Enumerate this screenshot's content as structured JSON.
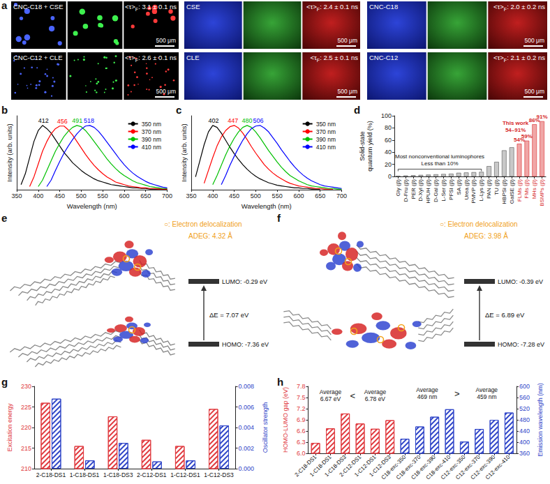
{
  "panel_a": {
    "letter": "a",
    "images": [
      {
        "name": "CNC-C18 + CSE",
        "tau": "<τ>",
        "sub": "F",
        "lifetime": ": 3.1 ± 0.1 ns",
        "scale": "500 μm"
      },
      {
        "name": "CNC-C12 + CLE",
        "tau": "<τ>",
        "sub": "F",
        "lifetime": ": 2.6 ± 0.1 ns",
        "scale": "500 μm"
      },
      {
        "name": "CSE",
        "tau": "<τ>",
        "sub": "F",
        "lifetime": ": 2.4 ± 0.1 ns",
        "scale": "500 μm"
      },
      {
        "name": "CLE",
        "tau": "<τ",
        "sub": "F",
        "lifetime": ": 2.5 ± 0.1 ns",
        "scale": "500 μm"
      },
      {
        "name": "CNC-C18",
        "tau": "<τ>",
        "sub": "F",
        "lifetime": ": 2.0 ± 0.2 ns",
        "scale": "500 μm"
      },
      {
        "name": "CNC-C12",
        "tau": "<τ>",
        "sub": "F",
        "lifetime": ": 2.1 ± 0.2 ns",
        "scale": "500 μm"
      }
    ]
  },
  "chart_data": [
    {
      "letter": "b",
      "type": "line",
      "x": [
        360,
        370,
        380,
        390,
        400,
        410,
        420,
        430,
        440,
        450,
        460,
        470,
        480,
        490,
        500,
        510,
        520,
        530,
        540,
        550,
        560,
        570,
        580,
        590,
        600,
        610,
        620,
        630,
        640,
        650,
        660,
        670,
        680,
        690,
        700
      ],
      "series": [
        {
          "name": "350 nm",
          "color": "#000000",
          "peak": 412,
          "values": [
            0.08,
            0.25,
            0.5,
            0.75,
            0.92,
            1.0,
            0.95,
            0.88,
            0.78,
            0.68,
            0.58,
            0.5,
            0.42,
            0.36,
            0.3,
            0.25,
            0.21,
            0.17,
            0.14,
            0.12,
            0.1,
            0.08,
            0.07,
            0.06,
            0.05,
            0.04,
            0.03,
            0.03,
            0.02,
            0.02,
            0.01,
            0.01,
            0.01,
            0.01,
            0.01
          ]
        },
        {
          "name": "370 nm",
          "color": "#ff0000",
          "peak": 456,
          "values": [
            null,
            null,
            0.05,
            0.2,
            0.4,
            0.6,
            0.75,
            0.87,
            0.95,
            0.99,
            0.99,
            0.93,
            0.85,
            0.75,
            0.65,
            0.55,
            0.46,
            0.38,
            0.31,
            0.25,
            0.2,
            0.16,
            0.12,
            0.1,
            0.08,
            0.06,
            0.05,
            0.04,
            0.03,
            0.03,
            0.02,
            0.02,
            0.01,
            0.01,
            0.01
          ]
        },
        {
          "name": "390 nm",
          "color": "#00c000",
          "peak": 491,
          "values": [
            null,
            null,
            null,
            null,
            0.05,
            0.15,
            0.3,
            0.45,
            0.6,
            0.72,
            0.83,
            0.91,
            0.97,
            1.0,
            0.98,
            0.92,
            0.84,
            0.75,
            0.66,
            0.57,
            0.48,
            0.4,
            0.33,
            0.27,
            0.22,
            0.18,
            0.14,
            0.11,
            0.09,
            0.07,
            0.05,
            0.04,
            0.03,
            0.02,
            0.02
          ]
        },
        {
          "name": "410 nm",
          "color": "#0000ff",
          "peak": 518,
          "values": [
            null,
            null,
            null,
            null,
            null,
            null,
            0.05,
            0.15,
            0.3,
            0.44,
            0.57,
            0.68,
            0.78,
            0.87,
            0.94,
            0.99,
            1.0,
            0.97,
            0.91,
            0.83,
            0.74,
            0.65,
            0.56,
            0.47,
            0.39,
            0.32,
            0.26,
            0.21,
            0.17,
            0.13,
            0.1,
            0.08,
            0.06,
            0.04,
            0.03
          ]
        }
      ],
      "xlim": [
        350,
        700
      ],
      "xticks": [
        350,
        400,
        450,
        500,
        550,
        600,
        650,
        700
      ],
      "ylim": [
        0,
        1.15
      ],
      "tick_labels": "x",
      "x_label": "Wavelength (nm)",
      "y_label": "Intensity (arb. units)",
      "legend": "top-right",
      "grid": false
    },
    {
      "letter": "c",
      "type": "line",
      "x": [
        360,
        370,
        380,
        390,
        400,
        410,
        420,
        430,
        440,
        450,
        460,
        470,
        480,
        490,
        500,
        510,
        520,
        530,
        540,
        550,
        560,
        570,
        580,
        590,
        600,
        610,
        620,
        630,
        640,
        650,
        660,
        670,
        680,
        690,
        700
      ],
      "series": [
        {
          "name": "350 nm",
          "color": "#000000",
          "peak": 402,
          "values": [
            0.2,
            0.45,
            0.7,
            0.9,
            1.0,
            0.97,
            0.88,
            0.77,
            0.66,
            0.56,
            0.47,
            0.39,
            0.32,
            0.26,
            0.21,
            0.17,
            0.14,
            0.11,
            0.09,
            0.07,
            0.06,
            0.05,
            0.04,
            0.03,
            0.03,
            0.02,
            0.02,
            0.01,
            0.01,
            0.01,
            null,
            null,
            null,
            null,
            null
          ]
        },
        {
          "name": "370 nm",
          "color": "#ff0000",
          "peak": 447,
          "values": [
            null,
            null,
            0.1,
            0.3,
            0.5,
            0.68,
            0.82,
            0.92,
            0.98,
            1.0,
            0.96,
            0.88,
            0.78,
            0.67,
            0.57,
            0.48,
            0.39,
            0.32,
            0.26,
            0.21,
            0.17,
            0.13,
            0.1,
            0.08,
            0.06,
            0.05,
            0.04,
            0.03,
            0.02,
            0.02,
            0.01,
            0.01,
            0.01,
            null,
            null
          ]
        },
        {
          "name": "390 nm",
          "color": "#00c000",
          "peak": 480,
          "values": [
            null,
            null,
            null,
            null,
            0.08,
            0.22,
            0.38,
            0.54,
            0.68,
            0.8,
            0.9,
            0.97,
            1.0,
            0.97,
            0.9,
            0.81,
            0.71,
            0.61,
            0.52,
            0.43,
            0.35,
            0.28,
            0.22,
            0.18,
            0.14,
            0.11,
            0.08,
            0.06,
            0.05,
            0.04,
            0.03,
            0.02,
            0.02,
            0.01,
            0.01
          ]
        },
        {
          "name": "410 nm",
          "color": "#0000ff",
          "peak": 506,
          "values": [
            null,
            null,
            null,
            null,
            null,
            null,
            0.08,
            0.22,
            0.38,
            0.52,
            0.65,
            0.77,
            0.87,
            0.95,
            0.99,
            1.0,
            0.96,
            0.9,
            0.81,
            0.72,
            0.62,
            0.53,
            0.44,
            0.36,
            0.29,
            0.23,
            0.18,
            0.14,
            0.11,
            0.08,
            0.06,
            0.05,
            0.04,
            0.03,
            0.02
          ]
        }
      ],
      "xlim": [
        350,
        700
      ],
      "xticks": [
        350,
        400,
        450,
        500,
        550,
        600,
        650,
        700
      ],
      "ylim": [
        0,
        1.15
      ],
      "tick_labels": "x",
      "x_label": "Wavelength (nm)",
      "y_label": "Intensity (arb. units)",
      "legend": "top-right",
      "grid": false
    },
    {
      "letter": "d",
      "type": "bar",
      "categories": [
        "Gly (β)",
        "D-Fru (β)",
        "PER (β)",
        "D-Xyl (β)",
        "HPUH (β)",
        "D-Gal (β)",
        "L-Ser (β)",
        "PFSI (β)",
        "SA (β)",
        "Urea (β)",
        "PMVP (β)",
        "L-Lys (β)",
        "PAN (β)",
        "TU (β)",
        "HBPSi (β)",
        "GalSE (β)",
        "FLMs (β)",
        "FMs (β)",
        "MHs (β)",
        "BSMPs (β)"
      ],
      "values": [
        1,
        1.5,
        2,
        2.5,
        3,
        3.5,
        4,
        4.5,
        6,
        6.5,
        7,
        7.5,
        17,
        24,
        43,
        48,
        54,
        59,
        86,
        91
      ],
      "colors": [
        "#c8c8c8",
        "#c8c8c8",
        "#c8c8c8",
        "#c8c8c8",
        "#c8c8c8",
        "#c8c8c8",
        "#c8c8c8",
        "#c8c8c8",
        "#c8c8c8",
        "#c8c8c8",
        "#c8c8c8",
        "#c8c8c8",
        "#c8c8c8",
        "#c8c8c8",
        "#c8c8c8",
        "#c8c8c8",
        "#f0a6a6",
        "#f0a6a6",
        "#f0a6a6",
        "#f0a6a6"
      ],
      "value_labels": [
        null,
        null,
        null,
        null,
        null,
        null,
        null,
        null,
        null,
        null,
        null,
        null,
        null,
        null,
        null,
        null,
        "54%",
        "59%",
        "86%",
        "91%"
      ],
      "ylim": [
        0,
        100
      ],
      "yticks": [
        0,
        20,
        40,
        60,
        80,
        100
      ],
      "y_label": "Solid-state quantum yield (%)",
      "annotations": [
        "This work",
        "54–91%",
        "Most nonconventional luminophores",
        "Less than 10%"
      ],
      "grid": false
    },
    {
      "letter": "g",
      "type": "bar",
      "categories": [
        "2-C18-DS1",
        "1-C18-DS1",
        "1-C18-DS3",
        "2-C12-DS1",
        "1-C12-DS1",
        "1-C12-DS3"
      ],
      "series": [
        {
          "name": "Excitation energy",
          "color": "#e0393e",
          "values": [
            226,
            215.5,
            222.7,
            217,
            215.5,
            224.5
          ]
        },
        {
          "name": "Oscillator strength",
          "color": "#2f45c8",
          "axis": "y2",
          "values": [
            0.0068,
            0.0008,
            0.0025,
            0.0007,
            0.0008,
            0.0042
          ]
        }
      ],
      "ylim": [
        210,
        230
      ],
      "yticks": [
        210,
        215,
        220,
        225,
        230
      ],
      "y2lim": [
        0,
        0.008
      ],
      "y2ticks": [
        {
          "value": 0,
          "label": "0.000"
        },
        {
          "value": 0.002,
          "label": "0.002"
        },
        {
          "value": 0.004,
          "label": "0.004"
        },
        {
          "value": 0.006,
          "label": "0.006"
        },
        {
          "value": 0.008,
          "label": "0.008"
        }
      ],
      "grid": false
    },
    {
      "letter": "h",
      "type": "bar",
      "categories": [
        "2-C18-DS1",
        "1-C18-DS1",
        "1-C18-DS3",
        "2-C12-DS1",
        "1-C12-DS1",
        "1-C12-DS3",
        "C18-exc-350",
        "C18-exc-370",
        "C18-exc-390",
        "C18-exc-410",
        "C12-exc-350",
        "C12-exc-370",
        "C12-exc-390",
        "C12-exc-410"
      ],
      "series": [
        {
          "name": "HOMO-LUMO gap (eV)",
          "color": "#e0393e",
          "values": [
            6.28,
            6.67,
            7.07,
            6.8,
            6.66,
            6.89,
            null,
            null,
            null,
            null,
            null,
            null,
            null,
            null
          ]
        },
        {
          "name": "Emission wavelength (nm)",
          "color": "#2f45c8",
          "axis": "y2",
          "values": [
            null,
            null,
            null,
            null,
            null,
            null,
            412,
            456,
            491,
            518,
            402,
            447,
            480,
            506
          ]
        }
      ],
      "ylim": [
        6.0,
        7.8
      ],
      "yticks": [
        {
          "value": 6,
          "label": "6.0"
        },
        6.3,
        6.6,
        6.9,
        7.2,
        7.5,
        7.8
      ],
      "y2lim": [
        360,
        600
      ],
      "y2ticks": [
        360,
        400,
        440,
        480,
        520,
        560,
        600
      ],
      "annotations": [
        "Average 6.67 eV",
        "<",
        "Average 6.78 eV",
        "Average 469 nm",
        ">",
        "Average 459 nm"
      ],
      "grid": false
    }
  ],
  "orbitals": [
    {
      "letter": "e",
      "note": "○: Electron delocalization",
      "adeg": "ADEG: 4.32 Å",
      "lumo": "LUMO: -0.29 eV",
      "gap": "ΔE = 7.07 eV",
      "homo": "HOMO: -7.36 eV"
    },
    {
      "letter": "f",
      "note": "○: Electron delocalization",
      "adeg": "ADEG: 3.98 Å",
      "lumo": "LUMO: -0.39 eV",
      "gap": "ΔE = 6.89 eV",
      "homo": "HOMO: -7.28 eV"
    }
  ]
}
